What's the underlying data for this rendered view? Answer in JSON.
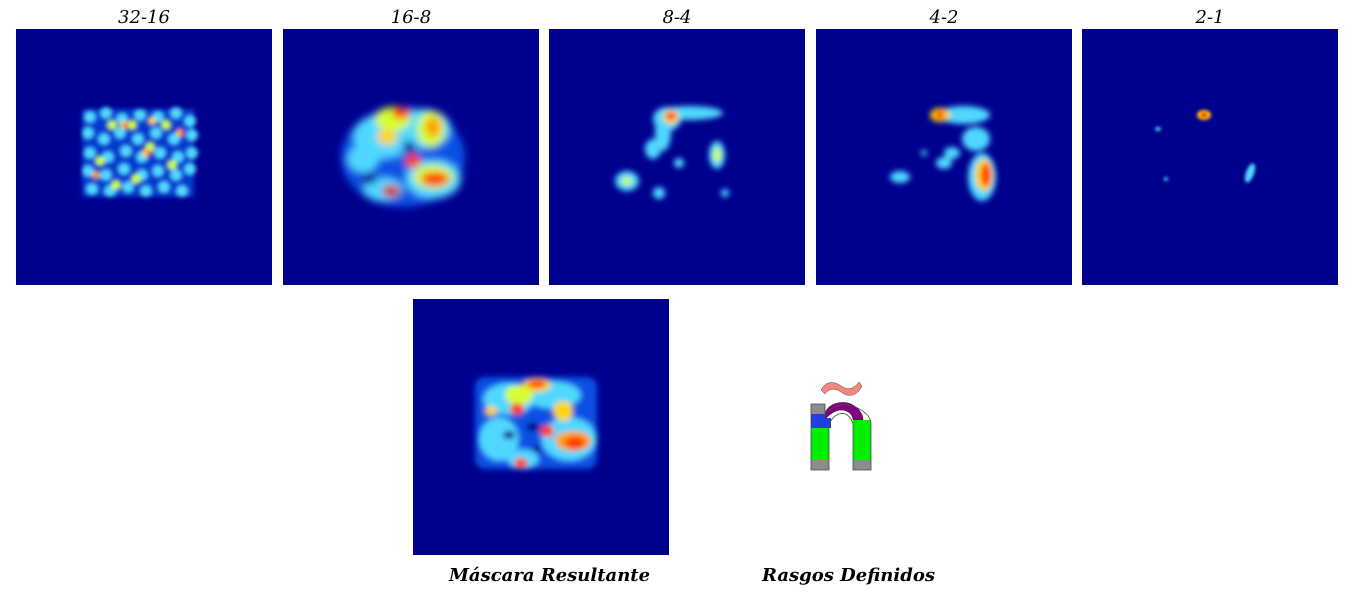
{
  "panels": [
    {
      "title": "32-16"
    },
    {
      "title": "16-8"
    },
    {
      "title": "8-4"
    },
    {
      "title": "4-2"
    },
    {
      "title": "2-1"
    }
  ],
  "captions": {
    "mask": "Máscara Resultante",
    "features": "Rasgos Definidos"
  },
  "colors": {
    "background": "#00008f",
    "blob_colormap": "jet"
  },
  "glyph": {
    "character": "ñ",
    "part_colors": {
      "tilde": "#f08a80",
      "arch": "#800080",
      "left_shoulder": "#1f3fe0",
      "stems": "#00ee00",
      "feet": "#8c8c8c"
    }
  }
}
